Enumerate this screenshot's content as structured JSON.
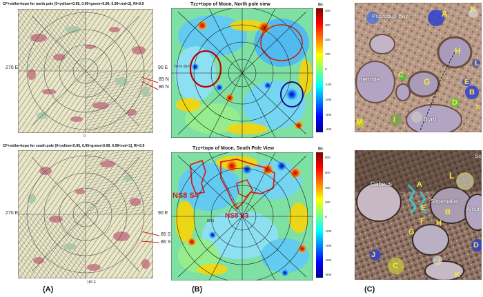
{
  "panel_a": {
    "top_title": "CF+strike+topo for north pole [0<yellow<0.95, 0.95<green<0.99, 0.99<red<1], RI<0.9",
    "top_left_label": "270 E",
    "top_right_label": "90 E",
    "top_lat1": "85 N",
    "top_lat2": "86 N",
    "top_bottom_label": "0",
    "bot_title": "CF+strike+topo for south pole [0<yellow<0.95, 0.95<green<0.99, 0.99<red<1], RI<0.9",
    "bot_left_label": "270 E",
    "bot_right_label": "90 E",
    "bot_lat1": "85 S",
    "bot_lat2": "86 S",
    "bot_bottom_label": "180 E",
    "letter": "(A)"
  },
  "panel_b": {
    "top_title": "Tzz+topo of Moon, North pole view",
    "top_unit": "(E)",
    "top_ticks": [
      "400",
      "300",
      "200",
      "100",
      "0",
      "-100",
      "-200",
      "-300",
      "-400"
    ],
    "top_lat1": "85 N",
    "top_lat2": "86 N",
    "bot_title": "Tzz+topo of Moon, South Pole View",
    "bot_unit": "(E)",
    "bot_ticks": [
      "800",
      "600",
      "400",
      "200",
      "0",
      "-200",
      "-400",
      "-600",
      "-800"
    ],
    "bot_lat": "86 S",
    "ns1": "NS8 S4",
    "ns2": "NS8 S3",
    "letter": "(B)"
  },
  "panel_c": {
    "top_names": {
      "poz": "Poczobutt-Bay",
      "hermite": "Hermite",
      "byrd": "Byrd"
    },
    "top_letters": [
      "A",
      "H",
      "L",
      "G",
      "C",
      "E",
      "B",
      "F",
      "D",
      "M",
      "I",
      "K"
    ],
    "bot_names": {
      "cabeus": "Cabeus",
      "shoemaker": "Shoemaker",
      "amundsen": "Amun",
      "s_top": "Sc"
    },
    "bot_letters": [
      "A",
      "L",
      "B",
      "E",
      "F",
      "G",
      "H",
      "C",
      "D",
      "J",
      "I",
      "K"
    ],
    "letter": "(C)"
  },
  "colors": {
    "red_line": "#c82020",
    "jet_high": "#800000",
    "jet_low": "#00008f"
  }
}
